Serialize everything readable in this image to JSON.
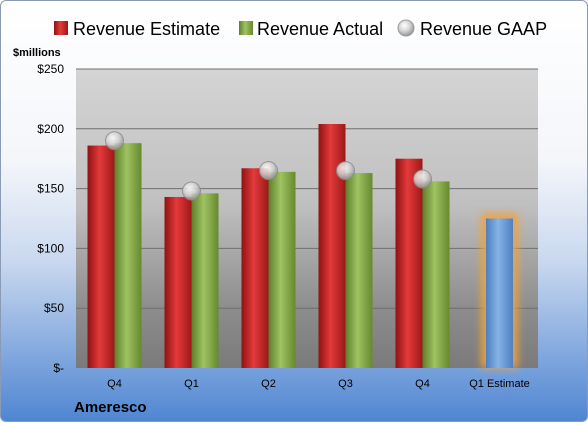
{
  "chart_data": {
    "type": "bar",
    "unit_label": "$millions",
    "company": "Ameresco",
    "categories": [
      "Q4",
      "Q1",
      "Q2",
      "Q3",
      "Q4",
      "Q1 Estimate"
    ],
    "ylim": [
      0,
      250
    ],
    "yticks": [
      {
        "value": 0,
        "label": "$-"
      },
      {
        "value": 50,
        "label": "$50"
      },
      {
        "value": 100,
        "label": "$100"
      },
      {
        "value": 150,
        "label": "$150"
      },
      {
        "value": 200,
        "label": "$200"
      },
      {
        "value": 250,
        "label": "$250"
      }
    ],
    "grid": true,
    "legend_position": "top",
    "series": [
      {
        "name": "Revenue Estimate",
        "kind": "bar",
        "color": "#d62b2b",
        "values": [
          186,
          143,
          167,
          204,
          175,
          null
        ]
      },
      {
        "name": "Revenue Actual",
        "kind": "bar",
        "color": "#8db34f",
        "values": [
          188,
          146,
          164,
          163,
          156,
          null
        ]
      },
      {
        "name": "Revenue GAAP",
        "kind": "marker",
        "color": "#c8c8c8",
        "values": [
          190,
          148,
          165,
          165,
          158,
          null
        ]
      },
      {
        "name": "Q1 Estimate",
        "kind": "highlight-bar",
        "color": "#6e9ed8",
        "values": [
          null,
          null,
          null,
          null,
          null,
          125
        ]
      }
    ]
  }
}
